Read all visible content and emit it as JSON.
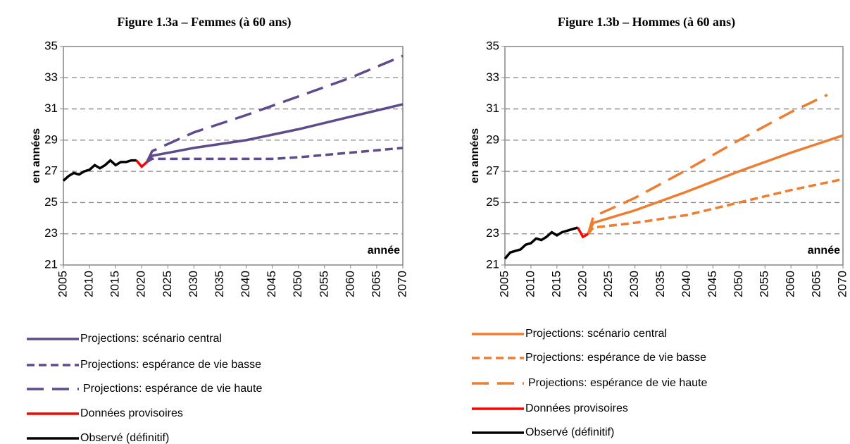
{
  "chart_data": [
    {
      "type": "line",
      "title": "Figure 1.3a – Femmes (à 60 ans)",
      "y_label": "en années",
      "x_label": "année",
      "xlim": [
        2005,
        2070
      ],
      "xticks": [
        2005,
        2010,
        2015,
        2020,
        2025,
        2030,
        2035,
        2040,
        2045,
        2050,
        2055,
        2060,
        2065,
        2070
      ],
      "ylim": [
        21,
        35
      ],
      "yticks": [
        21,
        23,
        25,
        27,
        29,
        31,
        33,
        35
      ],
      "grid": true,
      "series": [
        {
          "name": "Projections: scénario central",
          "color": "#5f4b8b",
          "dash": "solid",
          "x": [
            2021,
            2022,
            2030,
            2040,
            2050,
            2060,
            2070
          ],
          "values": [
            27.6,
            28.0,
            28.5,
            29.0,
            29.7,
            30.5,
            31.3
          ]
        },
        {
          "name": "Projections: espérance de vie basse",
          "color": "#5f4b8b",
          "dash": "short",
          "x": [
            2021,
            2022,
            2030,
            2040,
            2045,
            2050,
            2060,
            2070
          ],
          "values": [
            27.6,
            27.8,
            27.8,
            27.8,
            27.8,
            27.9,
            28.2,
            28.5
          ]
        },
        {
          "name": "Projections: espérance de vie haute",
          "color": "#5f4b8b",
          "dash": "long",
          "x": [
            2021,
            2022,
            2030,
            2040,
            2050,
            2060,
            2070
          ],
          "values": [
            27.6,
            28.3,
            29.5,
            30.6,
            31.8,
            33.0,
            34.4
          ]
        },
        {
          "name": "Données provisoires",
          "color": "#ff0000",
          "dash": "solid",
          "x": [
            2019,
            2020,
            2021
          ],
          "values": [
            27.7,
            27.3,
            27.6
          ]
        },
        {
          "name": "Observé (définitif)",
          "color": "#000000",
          "dash": "solid",
          "x": [
            2005,
            2006,
            2007,
            2008,
            2009,
            2010,
            2011,
            2012,
            2013,
            2014,
            2015,
            2016,
            2017,
            2018,
            2019
          ],
          "values": [
            26.4,
            26.7,
            26.9,
            26.8,
            27.0,
            27.1,
            27.4,
            27.2,
            27.4,
            27.7,
            27.4,
            27.6,
            27.6,
            27.7,
            27.7
          ]
        }
      ]
    },
    {
      "type": "line",
      "title": "Figure 1.3b – Hommes (à 60 ans)",
      "y_label": "en années",
      "x_label": "année",
      "xlim": [
        2005,
        2070
      ],
      "xticks": [
        2005,
        2010,
        2015,
        2020,
        2025,
        2030,
        2035,
        2040,
        2045,
        2050,
        2055,
        2060,
        2065,
        2070
      ],
      "ylim": [
        21,
        35
      ],
      "yticks": [
        21,
        23,
        25,
        27,
        29,
        31,
        33,
        35
      ],
      "grid": true,
      "series": [
        {
          "name": "Projections: scénario central",
          "color": "#ed7d31",
          "dash": "solid",
          "x": [
            2021,
            2022,
            2030,
            2040,
            2050,
            2060,
            2070
          ],
          "values": [
            23.0,
            23.7,
            24.5,
            25.7,
            27.0,
            28.2,
            29.3
          ]
        },
        {
          "name": "Projections: espérance de vie basse",
          "color": "#ed7d31",
          "dash": "short",
          "x": [
            2021,
            2022,
            2030,
            2040,
            2050,
            2060,
            2070
          ],
          "values": [
            23.0,
            23.4,
            23.7,
            24.2,
            25.0,
            25.8,
            26.5
          ]
        },
        {
          "name": "Projections: espérance de vie haute",
          "color": "#ed7d31",
          "dash": "long",
          "x": [
            2021,
            2022,
            2030,
            2040,
            2050,
            2060,
            2067
          ],
          "values": [
            23.0,
            24.1,
            25.3,
            27.1,
            29.0,
            30.8,
            31.9
          ]
        },
        {
          "name": "Données provisoires",
          "color": "#ff0000",
          "dash": "solid",
          "x": [
            2019,
            2020,
            2021
          ],
          "values": [
            23.4,
            22.8,
            23.0
          ]
        },
        {
          "name": "Observé (définitif)",
          "color": "#000000",
          "dash": "solid",
          "x": [
            2005,
            2006,
            2007,
            2008,
            2009,
            2010,
            2011,
            2012,
            2013,
            2014,
            2015,
            2016,
            2017,
            2018,
            2019
          ],
          "values": [
            21.4,
            21.8,
            21.9,
            22.0,
            22.3,
            22.4,
            22.7,
            22.6,
            22.8,
            23.1,
            22.9,
            23.1,
            23.2,
            23.3,
            23.4
          ]
        }
      ]
    }
  ]
}
